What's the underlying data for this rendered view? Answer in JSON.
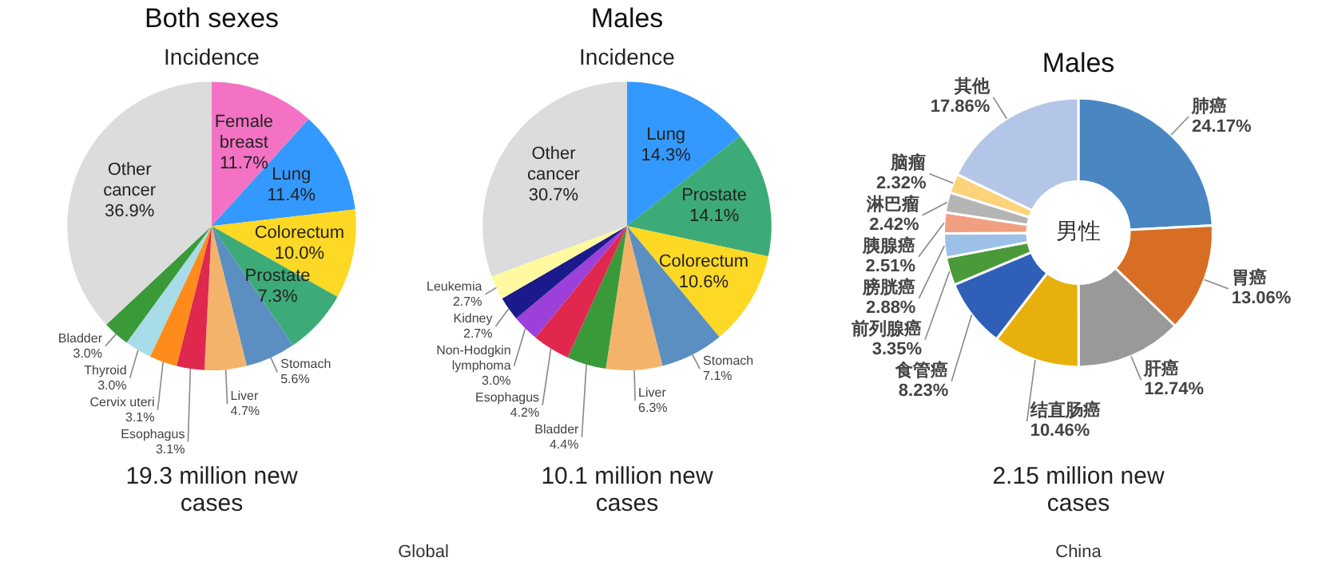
{
  "chart_data": [
    {
      "type": "pie",
      "title": "Both sexes",
      "subtitle": "Incidence",
      "categories": [
        "Female breast",
        "Lung",
        "Colorectum",
        "Prostate",
        "Stomach",
        "Liver",
        "Esophagus",
        "Cervix uteri",
        "Thyroid",
        "Bladder",
        "Other cancer"
      ],
      "values": [
        11.7,
        11.4,
        10.0,
        7.3,
        5.6,
        4.7,
        3.1,
        3.1,
        3.0,
        3.0,
        36.9
      ],
      "value_labels": [
        "11.7%",
        "11.4%",
        "10.0%",
        "7.3%",
        "5.6%",
        "4.7%",
        "3.1%",
        "3.1%",
        "3.0%",
        "3.0%",
        "36.9%"
      ],
      "colors": [
        "#f472c4",
        "#3399ff",
        "#fdd824",
        "#3dab78",
        "#5b8fc2",
        "#f4b36b",
        "#e0284e",
        "#ff8c1a",
        "#a8dce8",
        "#3a9a3a",
        "#dcdcdc"
      ],
      "annotations": [
        "19.3 million new cases",
        "Global"
      ]
    },
    {
      "type": "pie",
      "title": "Males",
      "subtitle": "Incidence",
      "categories": [
        "Lung",
        "Prostate",
        "Colorectum",
        "Stomach",
        "Liver",
        "Bladder",
        "Esophagus",
        "Non-Hodgkin lymphoma",
        "Kidney",
        "Leukemia",
        "Other cancer"
      ],
      "values": [
        14.3,
        14.1,
        10.6,
        7.1,
        6.3,
        4.4,
        4.2,
        3.0,
        2.7,
        2.7,
        30.7
      ],
      "value_labels": [
        "14.3%",
        "14.1%",
        "10.6%",
        "7.1%",
        "6.3%",
        "4.4%",
        "4.2%",
        "3.0%",
        "2.7%",
        "2.7%",
        "30.7%"
      ],
      "colors": [
        "#3399ff",
        "#3dab78",
        "#fdd824",
        "#5b8fc2",
        "#f4b36b",
        "#3a9a3a",
        "#e0284e",
        "#9b40d8",
        "#1a1a8c",
        "#fffaa0",
        "#dcdcdc"
      ],
      "annotations": [
        "10.1 million new cases"
      ]
    },
    {
      "type": "donut",
      "title": "Males",
      "categories": [
        "肺癌",
        "胃癌",
        "肝癌",
        "结直肠癌",
        "食管癌",
        "前列腺癌",
        "膀胱癌",
        "胰腺癌",
        "淋巴瘤",
        "脑瘤",
        "其他"
      ],
      "values": [
        24.17,
        13.06,
        12.74,
        10.46,
        8.23,
        3.35,
        2.88,
        2.51,
        2.42,
        2.32,
        17.86
      ],
      "value_labels": [
        "24.17%",
        "13.06%",
        "12.74%",
        "10.46%",
        "8.23%",
        "3.35%",
        "2.88%",
        "2.51%",
        "2.42%",
        "2.32%",
        "17.86%"
      ],
      "colors": [
        "#4a87c2",
        "#d86e24",
        "#999999",
        "#e8b00c",
        "#2f5fb8",
        "#4a9a3a",
        "#9cc0e8",
        "#f0a080",
        "#b4b4b4",
        "#fcd27a",
        "#b4c6e7"
      ],
      "annotations": [
        "男性",
        "2.15 million new cases",
        "China"
      ]
    }
  ]
}
